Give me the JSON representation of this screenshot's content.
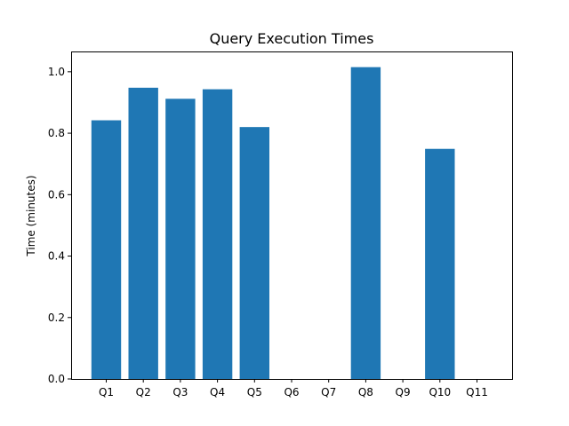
{
  "chart_data": {
    "type": "bar",
    "title": "Query Execution Times",
    "xlabel": "",
    "ylabel": "Time (minutes)",
    "categories": [
      "Q1",
      "Q2",
      "Q3",
      "Q4",
      "Q5",
      "Q6",
      "Q7",
      "Q8",
      "Q9",
      "Q10",
      "Q11"
    ],
    "values": [
      0.842,
      0.948,
      0.912,
      0.943,
      0.82,
      0,
      0,
      1.015,
      0,
      0.749,
      0
    ],
    "ylim": [
      0,
      1.066
    ],
    "yticks": [
      0.0,
      0.2,
      0.4,
      0.6,
      0.8,
      1.0
    ],
    "ytick_labels": [
      "0.0",
      "0.2",
      "0.4",
      "0.6",
      "0.8",
      "1.0"
    ],
    "bar_color": "#1f77b4",
    "grid": false,
    "legend": "none"
  }
}
